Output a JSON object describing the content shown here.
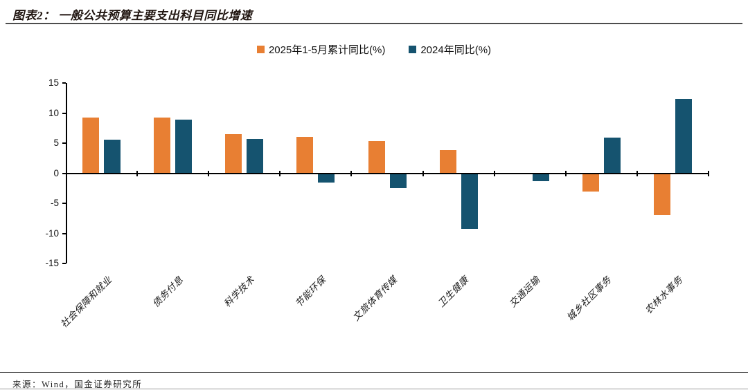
{
  "header": {
    "title": "图表2： 一般公共预算主要支出科目同比增速"
  },
  "footer": {
    "source": "来源：Wind，国金证券研究所"
  },
  "chart_data": {
    "type": "bar",
    "title": "一般公共预算主要支出科目同比增速",
    "categories": [
      "社会保障和就业",
      "债务付息",
      "科学技术",
      "节能环保",
      "文旅体育传媒",
      "卫生健康",
      "交通运输",
      "城乡社区事务",
      "农林水事务"
    ],
    "series": [
      {
        "name": "2025年1-5月累计同比(%)",
        "color": "#E87F33",
        "values": [
          9.2,
          9.2,
          6.5,
          6.0,
          5.3,
          3.9,
          -0.2,
          -3.1,
          -7.0
        ]
      },
      {
        "name": "2024年同比(%)",
        "color": "#15536F",
        "values": [
          5.6,
          8.9,
          5.7,
          -1.5,
          -2.5,
          -9.2,
          -1.3,
          5.9,
          12.4
        ]
      }
    ],
    "ylim": [
      -15,
      15
    ],
    "yticks": [
      15,
      10,
      5,
      0,
      -5,
      -10,
      -15
    ],
    "xlabel": "",
    "ylabel": "",
    "grid": false,
    "legend_position": "top-center"
  }
}
